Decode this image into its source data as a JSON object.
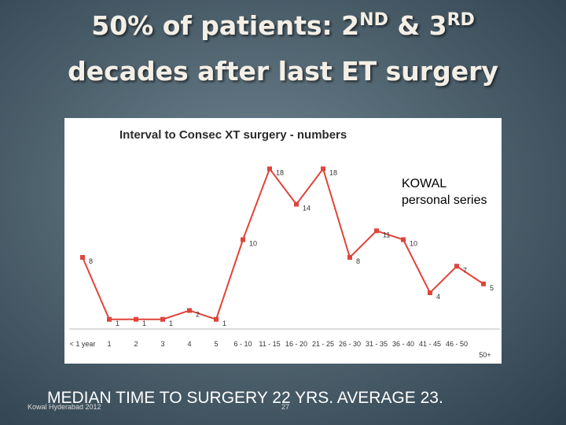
{
  "slide": {
    "title_line1": "50% of patients:  2",
    "title_sup1": "ND",
    "title_mid": " & 3",
    "title_sup2": "RD",
    "title_line2": "decades after last  ET surgery",
    "summary": "MEDIAN TIME TO SURGERY 22 YRS.   AVERAGE 23.",
    "footer": "Kowal Hyderabad 2012",
    "page_number": "27"
  },
  "chart_data": {
    "type": "line",
    "title": "Interval to Consec XT surgery - numbers",
    "annotation_line1": "KOWAL",
    "annotation_line2": "personal series",
    "categories": [
      "< 1 year",
      "1",
      "2",
      "3",
      "4",
      "5",
      "6 - 10",
      "11 - 15",
      "16 - 20",
      "21 - 25",
      "26 - 30",
      "31 - 35",
      "36 - 40",
      "41 - 45",
      "46 - 50",
      "50+"
    ],
    "values": [
      8,
      1,
      1,
      1,
      2,
      1,
      10,
      18,
      14,
      18,
      8,
      11,
      10,
      4,
      7,
      5
    ],
    "color": "#e0443a",
    "ylim": [
      0,
      20
    ]
  }
}
